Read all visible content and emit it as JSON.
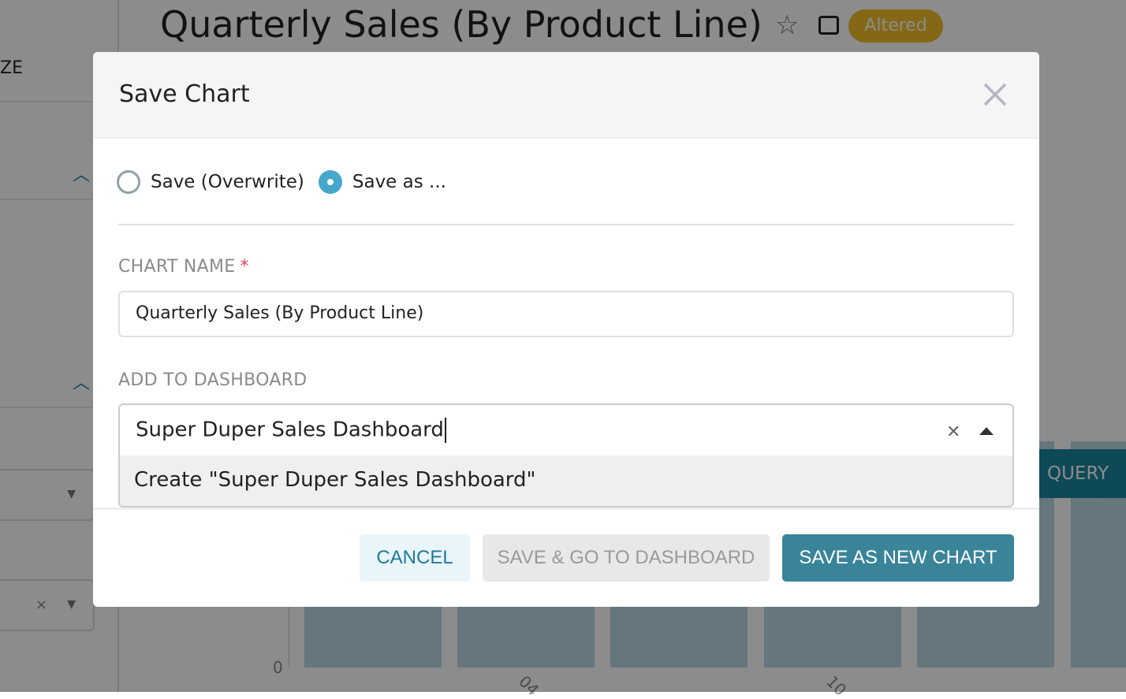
{
  "background": {
    "sidebar_label": "ZE",
    "chart_title": "Quarterly Sales (By Product Line)",
    "status_badge": "Altered",
    "run_button": "QUERY",
    "y_tick_zero": "0",
    "x_ticks": [
      "04",
      "10"
    ],
    "colors": {
      "badge": "#f0bd27",
      "primary": "#1a85a0",
      "bars": "#b9d8e3"
    }
  },
  "modal": {
    "title": "Save Chart",
    "radio_options": [
      {
        "label": "Save (Overwrite)",
        "selected": false
      },
      {
        "label": "Save as ...",
        "selected": true
      }
    ],
    "chart_name_label": "CHART NAME",
    "required_mark": "*",
    "chart_name_value": "Quarterly Sales (By Product Line)",
    "dashboard_label": "ADD TO DASHBOARD",
    "dashboard_input_value": "Super Duper Sales Dashboard",
    "dashboard_option": "Create \"Super Duper Sales Dashboard\"",
    "buttons": {
      "cancel": "CANCEL",
      "save_go": "SAVE & GO TO DASHBOARD",
      "save_new": "SAVE AS NEW CHART"
    }
  }
}
